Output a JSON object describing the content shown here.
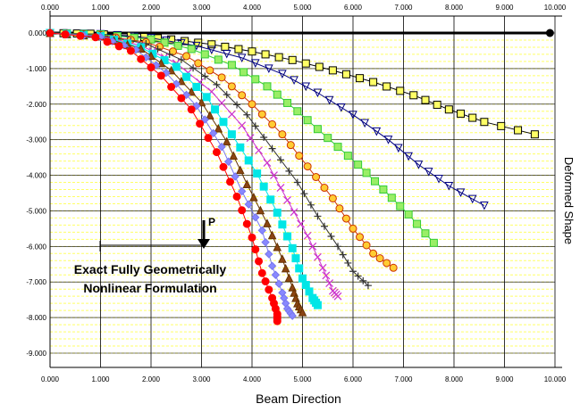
{
  "chart_data": {
    "type": "scatter",
    "xlabel": "Beam Direction",
    "ylabel": "Deformed Shape",
    "x_ticks": [
      "0.000",
      "1.000",
      "2.000",
      "3.000",
      "4.000",
      "5.000",
      "6.000",
      "7.000",
      "8.000",
      "9.000",
      "10.000"
    ],
    "y_ticks": [
      "0.000",
      "-1.000",
      "-2.000",
      "-3.000",
      "-4.000",
      "-5.000",
      "-6.000",
      "-7.000",
      "-8.000",
      "-9.000"
    ],
    "xlim": [
      0,
      10
    ],
    "ylim": [
      -9,
      0
    ],
    "grid": true,
    "grid_color": "#ffff66",
    "annotation": {
      "line1": "Exact Fully Geometrically",
      "line2": "Nonlinear Formulation",
      "load_label": "P"
    },
    "series": [
      {
        "color": "#000000",
        "marker": "circle",
        "points": [
          [
            0,
            0
          ],
          [
            9.9,
            0
          ]
        ]
      },
      {
        "color": "#000000",
        "marker": "square",
        "fill": "#ffff66",
        "points": [
          [
            0,
            0
          ],
          [
            0.8,
            -0.02
          ],
          [
            1.6,
            -0.08
          ],
          [
            2.4,
            -0.18
          ],
          [
            3.2,
            -0.32
          ],
          [
            4.0,
            -0.52
          ],
          [
            4.8,
            -0.76
          ],
          [
            5.6,
            -1.05
          ],
          [
            6.4,
            -1.38
          ],
          [
            7.2,
            -1.75
          ],
          [
            7.9,
            -2.15
          ],
          [
            8.6,
            -2.5
          ],
          [
            9.6,
            -2.85
          ]
        ]
      },
      {
        "color": "#000080",
        "marker": "triangle-down",
        "points": [
          [
            0,
            0
          ],
          [
            1,
            -0.03
          ],
          [
            2,
            -0.14
          ],
          [
            2.9,
            -0.36
          ],
          [
            3.8,
            -0.7
          ],
          [
            4.6,
            -1.15
          ],
          [
            5.3,
            -1.68
          ],
          [
            6.0,
            -2.3
          ],
          [
            6.7,
            -3.0
          ],
          [
            7.3,
            -3.7
          ],
          [
            7.9,
            -4.3
          ],
          [
            8.6,
            -4.85
          ]
        ]
      },
      {
        "color": "#33cc33",
        "marker": "square",
        "fill": "#99ee66",
        "points": [
          [
            0,
            0
          ],
          [
            1,
            -0.04
          ],
          [
            2,
            -0.18
          ],
          [
            2.8,
            -0.45
          ],
          [
            3.6,
            -0.9
          ],
          [
            4.3,
            -1.5
          ],
          [
            4.9,
            -2.2
          ],
          [
            5.5,
            -2.95
          ],
          [
            6.1,
            -3.7
          ],
          [
            6.6,
            -4.4
          ],
          [
            7.1,
            -5.1
          ],
          [
            7.6,
            -5.9
          ]
        ]
      },
      {
        "color": "#cc3300",
        "marker": "circle",
        "fill": "#ffcc33",
        "points": [
          [
            0,
            0
          ],
          [
            1,
            -0.06
          ],
          [
            1.9,
            -0.26
          ],
          [
            2.7,
            -0.65
          ],
          [
            3.4,
            -1.25
          ],
          [
            4.0,
            -2.0
          ],
          [
            4.6,
            -2.85
          ],
          [
            5.1,
            -3.75
          ],
          [
            5.6,
            -4.65
          ],
          [
            6.0,
            -5.5
          ],
          [
            6.4,
            -6.2
          ],
          [
            6.8,
            -6.6
          ]
        ]
      },
      {
        "color": "#333333",
        "marker": "plus",
        "points": [
          [
            0,
            0
          ],
          [
            1,
            -0.07
          ],
          [
            1.9,
            -0.3
          ],
          [
            2.6,
            -0.75
          ],
          [
            3.3,
            -1.45
          ],
          [
            3.9,
            -2.3
          ],
          [
            4.4,
            -3.25
          ],
          [
            4.9,
            -4.2
          ],
          [
            5.3,
            -5.15
          ],
          [
            5.7,
            -6.0
          ],
          [
            6.0,
            -6.7
          ],
          [
            6.3,
            -7.1
          ]
        ]
      },
      {
        "color": "#cc33cc",
        "marker": "x",
        "points": [
          [
            0,
            0
          ],
          [
            1,
            -0.08
          ],
          [
            1.8,
            -0.35
          ],
          [
            2.5,
            -0.85
          ],
          [
            3.2,
            -1.65
          ],
          [
            3.8,
            -2.6
          ],
          [
            4.3,
            -3.65
          ],
          [
            4.7,
            -4.7
          ],
          [
            5.1,
            -5.7
          ],
          [
            5.4,
            -6.6
          ],
          [
            5.6,
            -7.25
          ],
          [
            5.7,
            -7.4
          ]
        ]
      },
      {
        "color": "#00e6e6",
        "marker": "square",
        "fill": "#00e6e6",
        "points": [
          [
            0,
            0
          ],
          [
            1,
            -0.09
          ],
          [
            1.8,
            -0.4
          ],
          [
            2.5,
            -0.95
          ],
          [
            3.1,
            -1.8
          ],
          [
            3.6,
            -2.85
          ],
          [
            4.1,
            -3.95
          ],
          [
            4.5,
            -5.05
          ],
          [
            4.8,
            -6.05
          ],
          [
            5.0,
            -6.9
          ],
          [
            5.2,
            -7.45
          ],
          [
            5.3,
            -7.65
          ]
        ]
      },
      {
        "color": "#663300",
        "marker": "triangle-up",
        "fill": "#8b4513",
        "points": [
          [
            0,
            0
          ],
          [
            1,
            -0.1
          ],
          [
            1.8,
            -0.44
          ],
          [
            2.4,
            -1.05
          ],
          [
            3.0,
            -1.95
          ],
          [
            3.5,
            -3.05
          ],
          [
            3.9,
            -4.25
          ],
          [
            4.3,
            -5.35
          ],
          [
            4.6,
            -6.35
          ],
          [
            4.8,
            -7.15
          ],
          [
            4.9,
            -7.6
          ],
          [
            5.0,
            -7.85
          ]
        ]
      },
      {
        "color": "#7777ee",
        "marker": "diamond",
        "fill": "#8888ff",
        "points": [
          [
            0,
            0
          ],
          [
            1,
            -0.11
          ],
          [
            1.7,
            -0.47
          ],
          [
            2.3,
            -1.12
          ],
          [
            2.9,
            -2.05
          ],
          [
            3.4,
            -3.2
          ],
          [
            3.8,
            -4.45
          ],
          [
            4.2,
            -5.55
          ],
          [
            4.4,
            -6.55
          ],
          [
            4.6,
            -7.3
          ],
          [
            4.7,
            -7.75
          ],
          [
            4.8,
            -7.95
          ]
        ]
      },
      {
        "color": "#ff0000",
        "marker": "circle",
        "fill": "#ff0000",
        "points": [
          [
            0,
            0
          ],
          [
            0.9,
            -0.12
          ],
          [
            1.6,
            -0.5
          ],
          [
            2.2,
            -1.2
          ],
          [
            2.8,
            -2.15
          ],
          [
            3.3,
            -3.35
          ],
          [
            3.7,
            -4.6
          ],
          [
            4.0,
            -5.75
          ],
          [
            4.2,
            -6.75
          ],
          [
            4.4,
            -7.45
          ],
          [
            4.5,
            -7.9
          ],
          [
            4.5,
            -8.1
          ]
        ]
      }
    ]
  }
}
